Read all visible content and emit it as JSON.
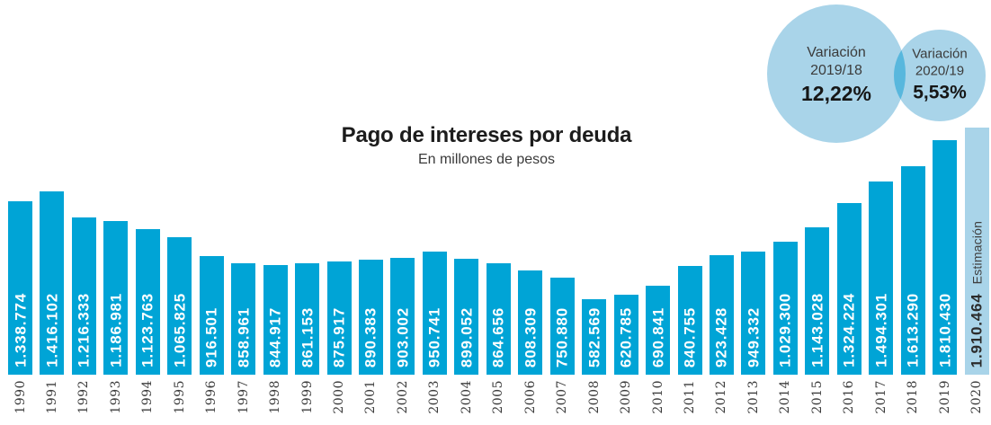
{
  "chart_data": {
    "type": "bar",
    "title": "Pago de intereses por deuda",
    "subtitle": "En millones de pesos",
    "categories": [
      "1990",
      "1991",
      "1992",
      "1993",
      "1994",
      "1995",
      "1996",
      "1997",
      "1998",
      "1999",
      "2000",
      "2001",
      "2002",
      "2003",
      "2004",
      "2005",
      "2006",
      "2007",
      "2008",
      "2009",
      "2010",
      "2011",
      "2012",
      "2013",
      "2014",
      "2015",
      "2016",
      "2017",
      "2018",
      "2019",
      "2020"
    ],
    "values": [
      1338774,
      1416102,
      1216333,
      1186981,
      1123763,
      1065825,
      916501,
      858961,
      844917,
      861153,
      875917,
      890383,
      903002,
      950741,
      899052,
      864656,
      808309,
      750880,
      582569,
      620785,
      690841,
      840755,
      923428,
      949332,
      1029300,
      1143028,
      1324224,
      1494301,
      1613290,
      1810430,
      1910464
    ],
    "value_labels": [
      "1.338.774",
      "1.416.102",
      "1.216.333",
      "1.186.981",
      "1.123.763",
      "1.065.825",
      "916.501",
      "858.961",
      "844.917",
      "861.153",
      "875.917",
      "890.383",
      "903.002",
      "950.741",
      "899.052",
      "864.656",
      "808.309",
      "750.880",
      "582.569",
      "620.785",
      "690.841",
      "840.755",
      "923.428",
      "949.332",
      "1.029.300",
      "1.143.028",
      "1.324.224",
      "1.494.301",
      "1.613.290",
      "1.810.430",
      "1.910.464"
    ],
    "ylim": [
      0,
      1910464
    ],
    "grid": false,
    "legend": "none",
    "bar_color": "#00a4d6",
    "estimate_index": 30,
    "estimate_bar_color": "#a9d4e9",
    "estimate_label": "Estimación",
    "value_label_color": "#ffffff",
    "estimate_value_color": "#2b2b2b"
  },
  "venn": {
    "circle_color": "#a9d4e9",
    "overlap_color": "#58b7dd",
    "circles": [
      {
        "line1": "Variación",
        "line2": "2019/18",
        "value": "12,22%"
      },
      {
        "line1": "Variación",
        "line2": "2020/19",
        "value": "5,53%"
      }
    ]
  }
}
